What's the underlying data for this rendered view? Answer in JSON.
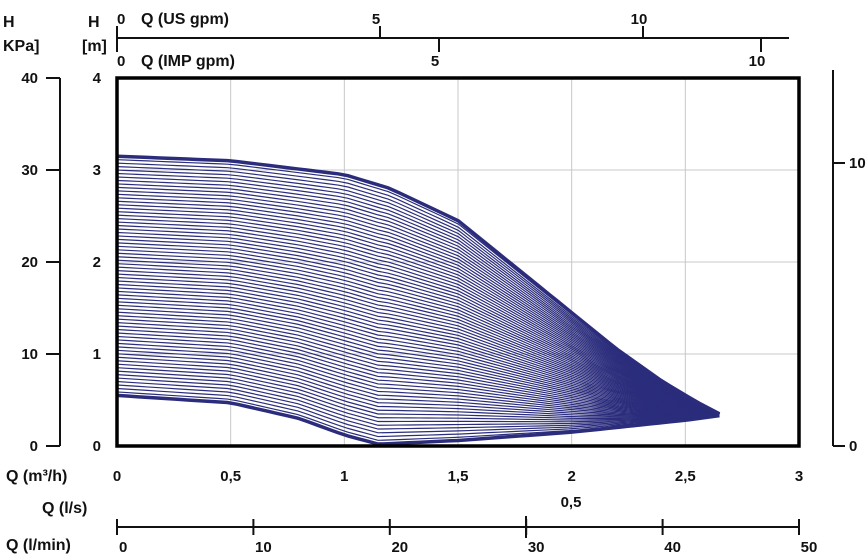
{
  "chart_data": {
    "type": "line",
    "axis_titles": {
      "h_kpa": [
        "H",
        "KPa]"
      ],
      "h_m": [
        "H",
        "[m]"
      ],
      "us_gpm": "Q (US gpm)",
      "imp_gpm": "Q (IMP gpm)",
      "m3h": "Q (m³/h)",
      "ls": "Q (l/s)",
      "lmin": "Q (l/min)"
    },
    "x_m3h": {
      "range": [
        0,
        3
      ],
      "ticks": [
        0,
        0.5,
        1,
        1.5,
        2,
        2.5,
        3
      ],
      "tick_labels": [
        "0",
        "0,5",
        "1",
        "1,5",
        "2",
        "2,5",
        "3"
      ]
    },
    "y_m": {
      "range": [
        0,
        4
      ],
      "ticks": [
        0,
        1,
        2,
        3,
        4
      ],
      "tick_labels": [
        "0",
        "1",
        "2",
        "3",
        "4"
      ]
    },
    "y_kpa": {
      "range": [
        0,
        40
      ],
      "ticks": [
        0,
        10,
        20,
        30,
        40
      ],
      "tick_labels": [
        "0",
        "10",
        "20",
        "30",
        "40"
      ]
    },
    "us_gpm": {
      "ticks": [
        0,
        5,
        10
      ],
      "tick_labels": [
        "0",
        "5",
        "10"
      ]
    },
    "imp_gpm": {
      "ticks": [
        0,
        5,
        10
      ],
      "tick_labels": [
        "0",
        "5",
        "10"
      ]
    },
    "ls": {
      "ticks": [
        0.5
      ],
      "tick_labels": [
        "0,5"
      ]
    },
    "lmin": {
      "ticks": [
        0,
        10,
        20,
        30,
        40,
        50
      ],
      "tick_labels": [
        "0",
        "10",
        "20",
        "30",
        "40",
        "50"
      ]
    },
    "right_axis": {
      "tick_labels": [
        "0",
        "10"
      ]
    },
    "grid": true,
    "curve_family": {
      "count": 70,
      "max_curve": {
        "x": [
          0,
          0.5,
          1.0,
          1.2,
          1.5,
          1.8,
          2.0,
          2.2,
          2.4,
          2.55,
          2.65
        ],
        "y": [
          3.15,
          3.1,
          2.95,
          2.8,
          2.45,
          1.85,
          1.45,
          1.05,
          0.7,
          0.48,
          0.35
        ]
      },
      "min_curve": {
        "x": [
          0,
          0.5,
          0.8,
          1.0,
          1.15,
          1.5,
          2.0,
          2.5,
          2.65
        ],
        "y": [
          0.55,
          0.47,
          0.3,
          0.12,
          0.02,
          0.06,
          0.15,
          0.28,
          0.33
        ]
      }
    },
    "color": "#2b2d7c"
  }
}
